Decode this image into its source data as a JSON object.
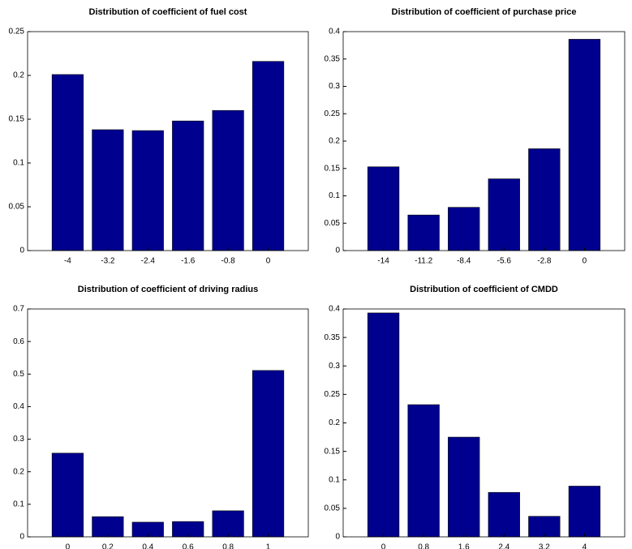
{
  "chart_data": [
    {
      "type": "bar",
      "title": "Distribution of coefficient of fuel cost",
      "categories": [
        "-4",
        "-3.2",
        "-2.4",
        "-1.6",
        "-0.8",
        "0"
      ],
      "values": [
        0.201,
        0.138,
        0.137,
        0.148,
        0.16,
        0.216
      ],
      "color": "#00008f",
      "ylim": [
        0,
        0.25
      ],
      "yticks": [
        0,
        0.05,
        0.1,
        0.15,
        0.2,
        0.25
      ],
      "grid": false
    },
    {
      "type": "bar",
      "title": "Distribution of coefficient of purchase price",
      "categories": [
        "-14",
        "-11.2",
        "-8.4",
        "-5.6",
        "-2.8",
        "0"
      ],
      "values": [
        0.153,
        0.065,
        0.079,
        0.131,
        0.186,
        0.386
      ],
      "color": "#00008f",
      "ylim": [
        0,
        0.4
      ],
      "yticks": [
        0,
        0.05,
        0.1,
        0.15,
        0.2,
        0.25,
        0.3,
        0.35,
        0.4
      ],
      "grid": false
    },
    {
      "type": "bar",
      "title": "Distribution of coefficient of driving radius",
      "categories": [
        "0",
        "0.2",
        "0.4",
        "0.6",
        "0.8",
        "1"
      ],
      "values": [
        0.257,
        0.062,
        0.045,
        0.047,
        0.08,
        0.511
      ],
      "color": "#00008f",
      "ylim": [
        0,
        0.7
      ],
      "yticks": [
        0,
        0.1,
        0.2,
        0.3,
        0.4,
        0.5,
        0.6,
        0.7
      ],
      "grid": false
    },
    {
      "type": "bar",
      "title": "Distribution of coefficient of CMDD",
      "categories": [
        "0",
        "0.8",
        "1.6",
        "2.4",
        "3.2",
        "4"
      ],
      "values": [
        0.393,
        0.232,
        0.175,
        0.078,
        0.036,
        0.089
      ],
      "color": "#00008f",
      "ylim": [
        0,
        0.4
      ],
      "yticks": [
        0,
        0.05,
        0.1,
        0.15,
        0.2,
        0.25,
        0.3,
        0.35,
        0.4
      ],
      "grid": false
    }
  ]
}
